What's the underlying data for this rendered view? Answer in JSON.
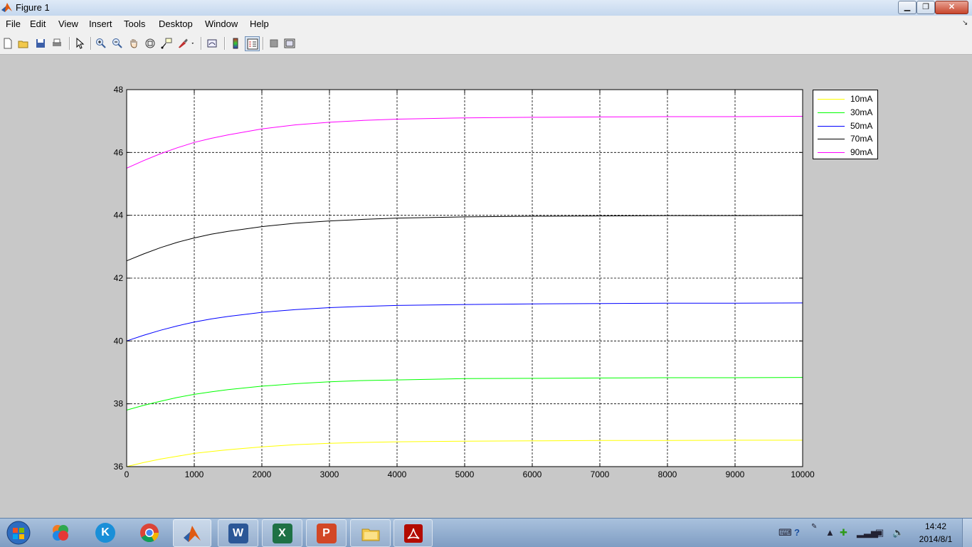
{
  "window": {
    "title": "Figure 1",
    "min_glyph": "▁",
    "max_glyph": "❐",
    "close_glyph": "✕"
  },
  "menu": {
    "items": [
      "File",
      "Edit",
      "View",
      "Insert",
      "Tools",
      "Desktop",
      "Window",
      "Help"
    ],
    "dock_glyph": "↘"
  },
  "toolbar": {
    "buttons": [
      "new-figure-icon",
      "open-file-icon",
      "save-icon",
      "print-icon",
      "edit-plot-arrow-icon",
      "zoom-in-icon",
      "zoom-out-icon",
      "pan-hand-icon",
      "rotate-3d-icon",
      "data-cursor-icon",
      "brush-icon",
      "link-plot-icon",
      "insert-colorbar-icon",
      "insert-legend-icon",
      "hide-plot-tools-icon",
      "show-plot-tools-icon"
    ]
  },
  "chart_data": {
    "type": "line",
    "title": "",
    "xlabel": "",
    "ylabel": "",
    "xlim": [
      0,
      10000
    ],
    "ylim": [
      36,
      48
    ],
    "xticks": [
      0,
      1000,
      2000,
      3000,
      4000,
      5000,
      6000,
      7000,
      8000,
      9000,
      10000
    ],
    "yticks": [
      36,
      38,
      40,
      42,
      44,
      46,
      48
    ],
    "grid": true,
    "legend_position": "outside-top-right",
    "x": [
      0,
      250,
      500,
      750,
      1000,
      1250,
      1500,
      2000,
      2500,
      3000,
      3500,
      4000,
      5000,
      6000,
      7000,
      8000,
      9000,
      10000
    ],
    "series": [
      {
        "name": "10mA",
        "color": "#ffff00",
        "values": [
          36.0,
          36.13,
          36.24,
          36.33,
          36.42,
          36.48,
          36.54,
          36.63,
          36.7,
          36.74,
          36.77,
          36.79,
          36.81,
          36.82,
          36.83,
          36.83,
          36.84,
          36.84
        ]
      },
      {
        "name": "30mA",
        "color": "#00ff00",
        "values": [
          37.8,
          37.95,
          38.08,
          38.2,
          38.3,
          38.38,
          38.45,
          38.56,
          38.64,
          38.7,
          38.74,
          38.76,
          38.8,
          38.81,
          38.82,
          38.83,
          38.83,
          38.84
        ]
      },
      {
        "name": "50mA",
        "color": "#0000ff",
        "values": [
          40.0,
          40.18,
          40.34,
          40.48,
          40.6,
          40.7,
          40.78,
          40.91,
          41.0,
          41.06,
          41.1,
          41.13,
          41.16,
          41.18,
          41.19,
          41.2,
          41.2,
          41.21
        ]
      },
      {
        "name": "70mA",
        "color": "#000000",
        "values": [
          42.55,
          42.77,
          42.97,
          43.14,
          43.28,
          43.4,
          43.49,
          43.64,
          43.75,
          43.82,
          43.87,
          43.91,
          43.95,
          43.97,
          43.98,
          43.99,
          43.99,
          44.0
        ]
      },
      {
        "name": "90mA",
        "color": "#ff00ff",
        "values": [
          45.5,
          45.74,
          45.96,
          46.15,
          46.32,
          46.45,
          46.56,
          46.75,
          46.88,
          46.96,
          47.02,
          47.06,
          47.1,
          47.12,
          47.13,
          47.14,
          47.14,
          47.15
        ]
      }
    ]
  },
  "taskbar": {
    "apps": [
      {
        "name": "start-orb",
        "label": ""
      },
      {
        "name": "picture-app",
        "label": ""
      },
      {
        "name": "kuwo-music",
        "label": "K"
      },
      {
        "name": "chrome",
        "label": ""
      },
      {
        "name": "matlab",
        "label": ""
      },
      {
        "name": "word",
        "label": "W"
      },
      {
        "name": "excel",
        "label": "X"
      },
      {
        "name": "powerpoint",
        "label": "P"
      },
      {
        "name": "explorer",
        "label": ""
      },
      {
        "name": "acrobat",
        "label": ""
      }
    ],
    "clock_time": "14:42",
    "clock_date": "2014/8/1",
    "colors": {
      "kuwo": "#1a8fd8",
      "word": "#2b5797",
      "excel": "#1e7145",
      "powerpoint": "#d24726",
      "acrobat": "#b30b00"
    }
  }
}
